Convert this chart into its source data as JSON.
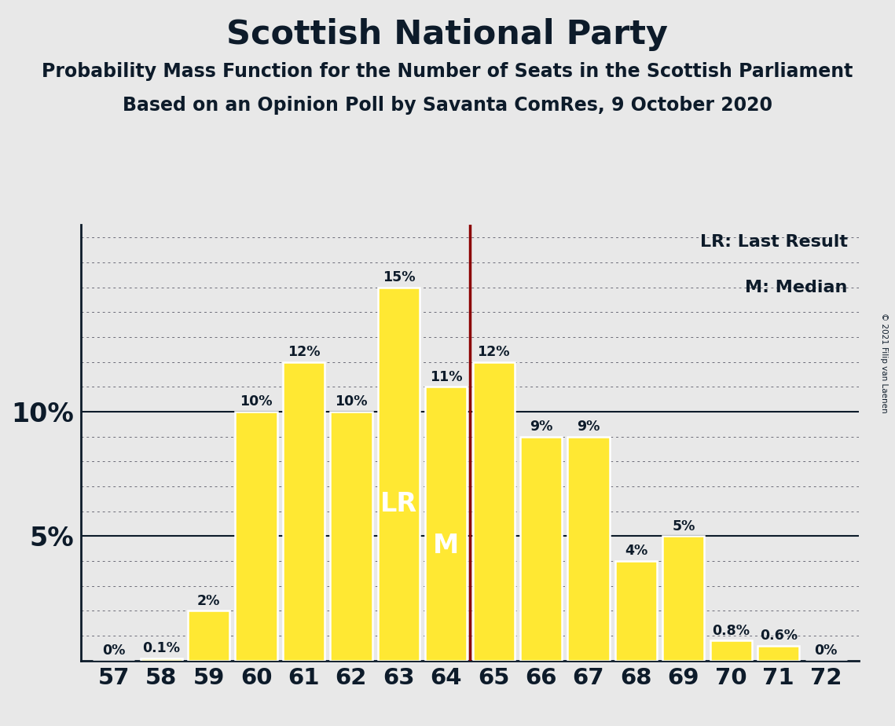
{
  "title": "Scottish National Party",
  "subtitle1": "Probability Mass Function for the Number of Seats in the Scottish Parliament",
  "subtitle2": "Based on an Opinion Poll by Savanta ComRes, 9 October 2020",
  "copyright": "© 2021 Filip van Laenen",
  "seats": [
    57,
    58,
    59,
    60,
    61,
    62,
    63,
    64,
    65,
    66,
    67,
    68,
    69,
    70,
    71,
    72
  ],
  "probabilities": [
    0.0,
    0.1,
    2.0,
    10.0,
    12.0,
    10.0,
    15.0,
    11.0,
    12.0,
    9.0,
    9.0,
    4.0,
    5.0,
    0.8,
    0.6,
    0.0
  ],
  "bar_color": "#FFE833",
  "bar_edge_color": "#FFFFFF",
  "lr_seat": 63,
  "median_seat": 64,
  "lr_line_color": "#8B0000",
  "lr_line_x": 64.5,
  "background_color": "#E8E8E8",
  "title_color": "#0D1B2A",
  "bar_label_color": "#0D1B2A",
  "lr_label_color": "#FFFFFF",
  "median_label_color": "#FFFFFF",
  "grid_color": "#1a1a2e",
  "spine_color": "#0D1B2A",
  "legend_lr": "LR: Last Result",
  "legend_m": "M: Median",
  "ytick_labels": [
    "5%",
    "10%"
  ],
  "ytick_values": [
    5,
    10
  ],
  "ylim": [
    0,
    17.5
  ],
  "xlim": [
    56.3,
    72.7
  ]
}
